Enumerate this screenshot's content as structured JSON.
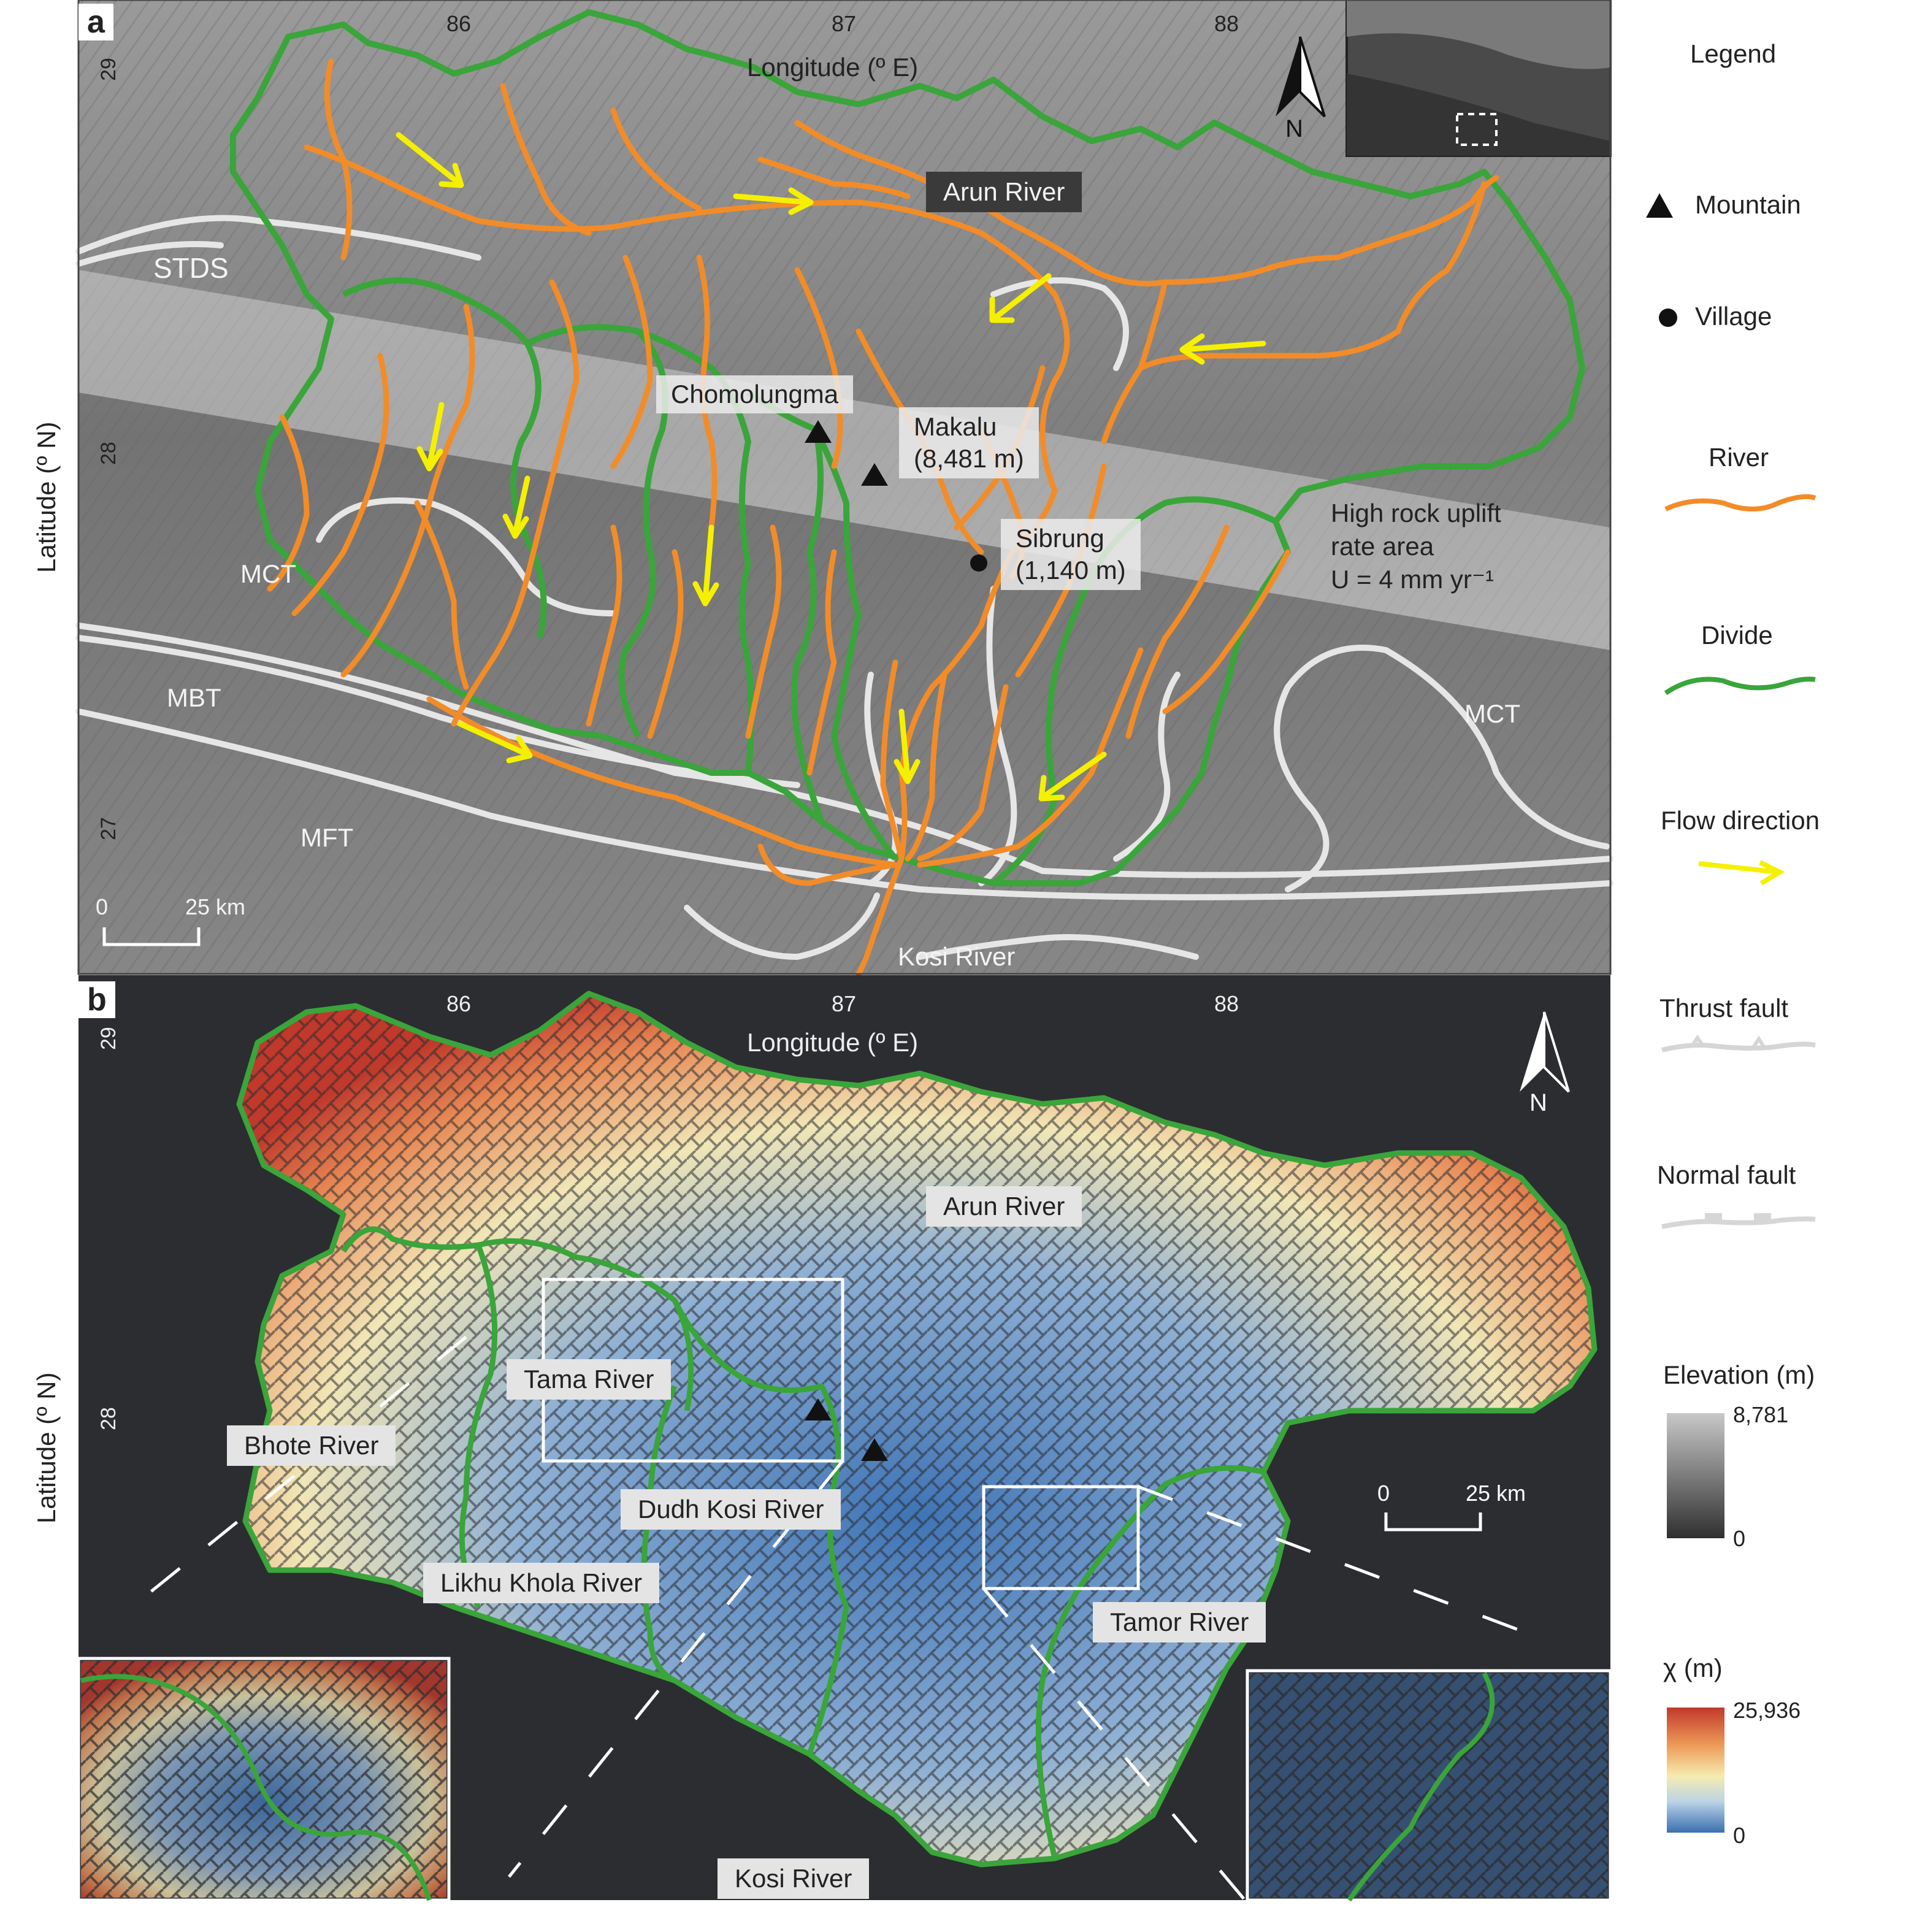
{
  "panel_a": {
    "letter": "a",
    "x_axis_label": "Longitude (º E)",
    "y_axis_label": "Latitude (º N)",
    "lon_ticks": [
      "86",
      "87",
      "88"
    ],
    "lat_ticks": [
      "29",
      "28",
      "27"
    ],
    "labels": {
      "arun_river": "Arun River",
      "stds": "STDS",
      "mct_west": "MCT",
      "mct_east": "MCT",
      "mbt": "MBT",
      "mft": "MFT",
      "chomolungma": "Chomolungma",
      "makalu_name": "Makalu",
      "makalu_elev": "(8,481 m)",
      "sibrung_name": "Sibrung",
      "sibrung_elev": "(1,140 m)",
      "uplift_line1": "High rock uplift",
      "uplift_line2": "rate area",
      "uplift_line3": "U = 4 mm yr⁻¹",
      "kosi_river": "Kosi River",
      "north": "N"
    },
    "scale_bar": {
      "zero": "0",
      "length": "25 km"
    }
  },
  "panel_b": {
    "letter": "b",
    "x_axis_label": "Longitude (º E)",
    "y_axis_label": "Latitude (º N)",
    "lon_ticks": [
      "86",
      "87",
      "88"
    ],
    "lat_ticks": [
      "29",
      "28"
    ],
    "labels": {
      "arun_river": "Arun River",
      "tama_river": "Tama River",
      "bhote_river": "Bhote River",
      "dudh_kosi_river": "Dudh Kosi River",
      "likhu_khola_river": "Likhu Khola River",
      "tamor_river": "Tamor River",
      "kosi_river": "Kosi River",
      "north": "N"
    },
    "scale_bar": {
      "zero": "0",
      "length": "25 km"
    }
  },
  "legend": {
    "title": "Legend",
    "mountain": "Mountain",
    "village": "Village",
    "river": "River",
    "divide": "Divide",
    "flow_direction": "Flow direction",
    "thrust_fault": "Thrust fault",
    "normal_fault": "Normal fault",
    "elevation_title": "Elevation (m)",
    "elevation_max": "8,781",
    "elevation_min": "0",
    "chi_title": "χ (m)",
    "chi_max": "25,936",
    "chi_min": "0"
  },
  "colors": {
    "river": "#f28c28",
    "divide": "#3aa53a",
    "flow_direction": "#f5f000",
    "fault": "#e6e6e6",
    "chi_high": "#c0392b",
    "chi_mid": "#f5ecb0",
    "chi_low": "#3a6fb0",
    "panel_b_bg": "#2b2d30"
  }
}
